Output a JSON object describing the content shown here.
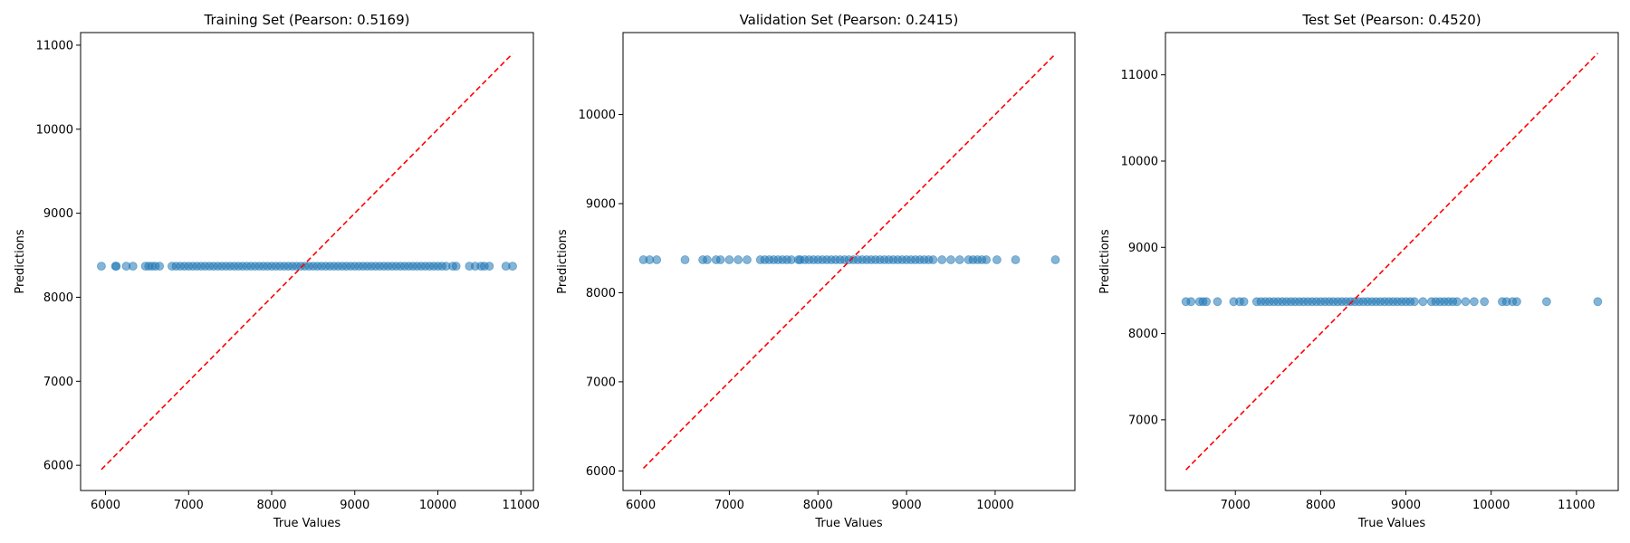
{
  "chart_data": [
    {
      "type": "scatter",
      "title": "Training Set (Pearson: 0.5169)",
      "xlabel": "True Values",
      "ylabel": "Predictions",
      "xlim": [
        5700,
        11150
      ],
      "ylim": [
        5700,
        11150
      ],
      "xticks": [
        6000,
        7000,
        8000,
        9000,
        10000,
        11000
      ],
      "yticks": [
        6000,
        7000,
        8000,
        9000,
        10000,
        11000
      ],
      "tick_labels_x": [
        "6000",
        "7000",
        "8000",
        "9000",
        "10000",
        "11000"
      ],
      "tick_labels_y": [
        "6000",
        "7000",
        "8000",
        "9000",
        "10000",
        "11000"
      ],
      "reference_line": {
        "from": [
          5950,
          5950
        ],
        "to": [
          10900,
          10900
        ],
        "color": "#ff0000",
        "style": "dashed"
      },
      "series": [
        {
          "color": "#1f77b4",
          "x": [
            5950,
            6120,
            6130,
            6250,
            6330,
            6480,
            6520,
            6560,
            6600,
            6650,
            6800,
            6850,
            6900,
            6950,
            7000,
            7050,
            7100,
            7150,
            7200,
            7250,
            7300,
            7350,
            7400,
            7450,
            7500,
            7550,
            7600,
            7650,
            7700,
            7750,
            7800,
            7850,
            7900,
            7950,
            8000,
            8050,
            8100,
            8150,
            8200,
            8250,
            8300,
            8350,
            8400,
            8450,
            8500,
            8550,
            8600,
            8650,
            8700,
            8750,
            8800,
            8850,
            8900,
            8950,
            9000,
            9050,
            9100,
            9150,
            9200,
            9250,
            9300,
            9350,
            9400,
            9450,
            9500,
            9550,
            9600,
            9650,
            9700,
            9750,
            9800,
            9850,
            9900,
            9950,
            10000,
            10050,
            10100,
            10180,
            10220,
            10380,
            10450,
            10520,
            10560,
            10620,
            10820,
            10900
          ],
          "y": [
            8370,
            8370,
            8370,
            8370,
            8370,
            8370,
            8370,
            8370,
            8370,
            8370,
            8370,
            8370,
            8370,
            8370,
            8370,
            8370,
            8370,
            8370,
            8370,
            8370,
            8370,
            8370,
            8370,
            8370,
            8370,
            8370,
            8370,
            8370,
            8370,
            8370,
            8370,
            8370,
            8370,
            8370,
            8370,
            8370,
            8370,
            8370,
            8370,
            8370,
            8370,
            8370,
            8370,
            8370,
            8370,
            8370,
            8370,
            8370,
            8370,
            8370,
            8370,
            8370,
            8370,
            8370,
            8370,
            8370,
            8370,
            8370,
            8370,
            8370,
            8370,
            8370,
            8370,
            8370,
            8370,
            8370,
            8370,
            8370,
            8370,
            8370,
            8370,
            8370,
            8370,
            8370,
            8370,
            8370,
            8370,
            8370,
            8370,
            8370,
            8370,
            8370,
            8370,
            8370,
            8370,
            8370
          ]
        }
      ]
    },
    {
      "type": "scatter",
      "title": "Validation Set (Pearson: 0.2415)",
      "xlabel": "True Values",
      "ylabel": "Predictions",
      "xlim": [
        5800,
        10900
      ],
      "ylim": [
        5780,
        10920
      ],
      "xticks": [
        6000,
        7000,
        8000,
        9000,
        10000
      ],
      "yticks": [
        6000,
        7000,
        8000,
        9000,
        10000
      ],
      "tick_labels_x": [
        "6000",
        "7000",
        "8000",
        "9000",
        "10000"
      ],
      "tick_labels_y": [
        "6000",
        "7000",
        "8000",
        "9000",
        "10000"
      ],
      "reference_line": {
        "from": [
          6030,
          6030
        ],
        "to": [
          10680,
          10680
        ],
        "color": "#ff0000",
        "style": "dashed"
      },
      "series": [
        {
          "color": "#1f77b4",
          "x": [
            6030,
            6100,
            6180,
            6500,
            6700,
            6750,
            6850,
            6900,
            7000,
            7100,
            7200,
            7350,
            7400,
            7450,
            7500,
            7550,
            7600,
            7650,
            7700,
            7780,
            7800,
            7850,
            7900,
            7950,
            8000,
            8050,
            8100,
            8150,
            8200,
            8250,
            8300,
            8350,
            8400,
            8450,
            8500,
            8550,
            8600,
            8650,
            8700,
            8750,
            8800,
            8850,
            8900,
            8950,
            9000,
            9050,
            9100,
            9150,
            9200,
            9250,
            9300,
            9400,
            9500,
            9600,
            9700,
            9750,
            9800,
            9850,
            9900,
            10020,
            10230,
            10680
          ],
          "y": [
            8370,
            8370,
            8370,
            8370,
            8370,
            8370,
            8370,
            8370,
            8370,
            8370,
            8370,
            8370,
            8370,
            8370,
            8370,
            8370,
            8370,
            8370,
            8370,
            8370,
            8370,
            8370,
            8370,
            8370,
            8370,
            8370,
            8370,
            8370,
            8370,
            8370,
            8370,
            8370,
            8370,
            8370,
            8370,
            8370,
            8370,
            8370,
            8370,
            8370,
            8370,
            8370,
            8370,
            8370,
            8370,
            8370,
            8370,
            8370,
            8370,
            8370,
            8370,
            8370,
            8370,
            8370,
            8370,
            8370,
            8370,
            8370,
            8370,
            8370,
            8370,
            8370
          ]
        }
      ]
    },
    {
      "type": "scatter",
      "title": "Test Set (Pearson: 0.4520)",
      "xlabel": "True Values",
      "ylabel": "Predictions",
      "xlim": [
        6180,
        11490
      ],
      "ylim": [
        6180,
        11490
      ],
      "xticks": [
        7000,
        8000,
        9000,
        10000,
        11000
      ],
      "yticks": [
        7000,
        8000,
        9000,
        10000,
        11000
      ],
      "tick_labels_x": [
        "7000",
        "8000",
        "9000",
        "10000",
        "11000"
      ],
      "tick_labels_y": [
        "7000",
        "8000",
        "9000",
        "10000",
        "11000"
      ],
      "reference_line": {
        "from": [
          6420,
          6420
        ],
        "to": [
          11250,
          11250
        ],
        "color": "#ff0000",
        "style": "dashed"
      },
      "series": [
        {
          "color": "#1f77b4",
          "x": [
            6420,
            6480,
            6580,
            6620,
            6660,
            6790,
            6980,
            7050,
            7100,
            7250,
            7300,
            7350,
            7400,
            7450,
            7500,
            7550,
            7600,
            7650,
            7700,
            7750,
            7800,
            7850,
            7900,
            7950,
            8000,
            8050,
            8100,
            8150,
            8200,
            8250,
            8300,
            8350,
            8400,
            8450,
            8500,
            8550,
            8600,
            8650,
            8700,
            8750,
            8800,
            8850,
            8900,
            8950,
            9000,
            9050,
            9100,
            9200,
            9300,
            9350,
            9400,
            9450,
            9500,
            9550,
            9600,
            9700,
            9800,
            9920,
            10130,
            10180,
            10250,
            10300,
            10650,
            11250
          ],
          "y": [
            8370,
            8370,
            8370,
            8370,
            8370,
            8370,
            8370,
            8370,
            8370,
            8370,
            8370,
            8370,
            8370,
            8370,
            8370,
            8370,
            8370,
            8370,
            8370,
            8370,
            8370,
            8370,
            8370,
            8370,
            8370,
            8370,
            8370,
            8370,
            8370,
            8370,
            8370,
            8370,
            8370,
            8370,
            8370,
            8370,
            8370,
            8370,
            8370,
            8370,
            8370,
            8370,
            8370,
            8370,
            8370,
            8370,
            8370,
            8370,
            8370,
            8370,
            8370,
            8370,
            8370,
            8370,
            8370,
            8370,
            8370,
            8370,
            8370,
            8370,
            8370,
            8370,
            8370,
            8370
          ]
        }
      ]
    }
  ]
}
